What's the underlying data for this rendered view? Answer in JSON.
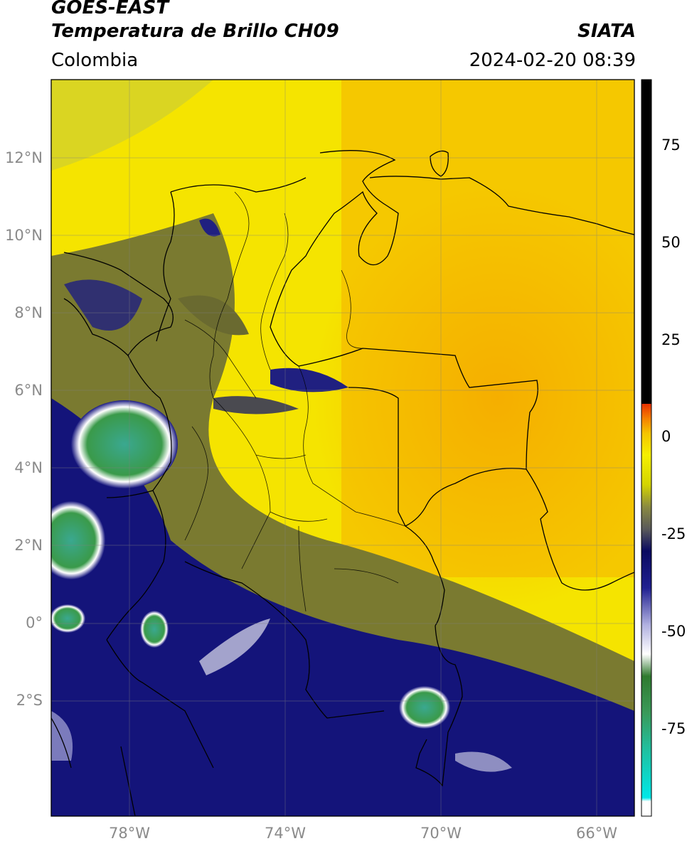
{
  "header": {
    "satellite": "GOES-EAST",
    "product": "Temperatura de Brillo CH09",
    "organization": "SIATA",
    "region": "Colombia",
    "timestamp": "2024-02-20 08:39"
  },
  "map": {
    "lat_labels": [
      "12°N",
      "10°N",
      "8°N",
      "6°N",
      "4°N",
      "2°N",
      "0°",
      "2°S"
    ],
    "lon_labels": [
      "78°W",
      "74°W",
      "70°W",
      "66°W"
    ]
  },
  "colorbar": {
    "ticks": [
      "75",
      "50",
      "25",
      "0",
      "-25",
      "-50",
      "-75"
    ],
    "colors": {
      "hot": "#f5a800",
      "yellow": "#f5f000",
      "olive": "#8a8a20",
      "navy": "#141478",
      "white": "#ffffff",
      "green": "#3a9a3a",
      "teal": "#20c8b0",
      "cyan": "#00e8e8",
      "red": "#e82000",
      "black": "#000000"
    }
  }
}
